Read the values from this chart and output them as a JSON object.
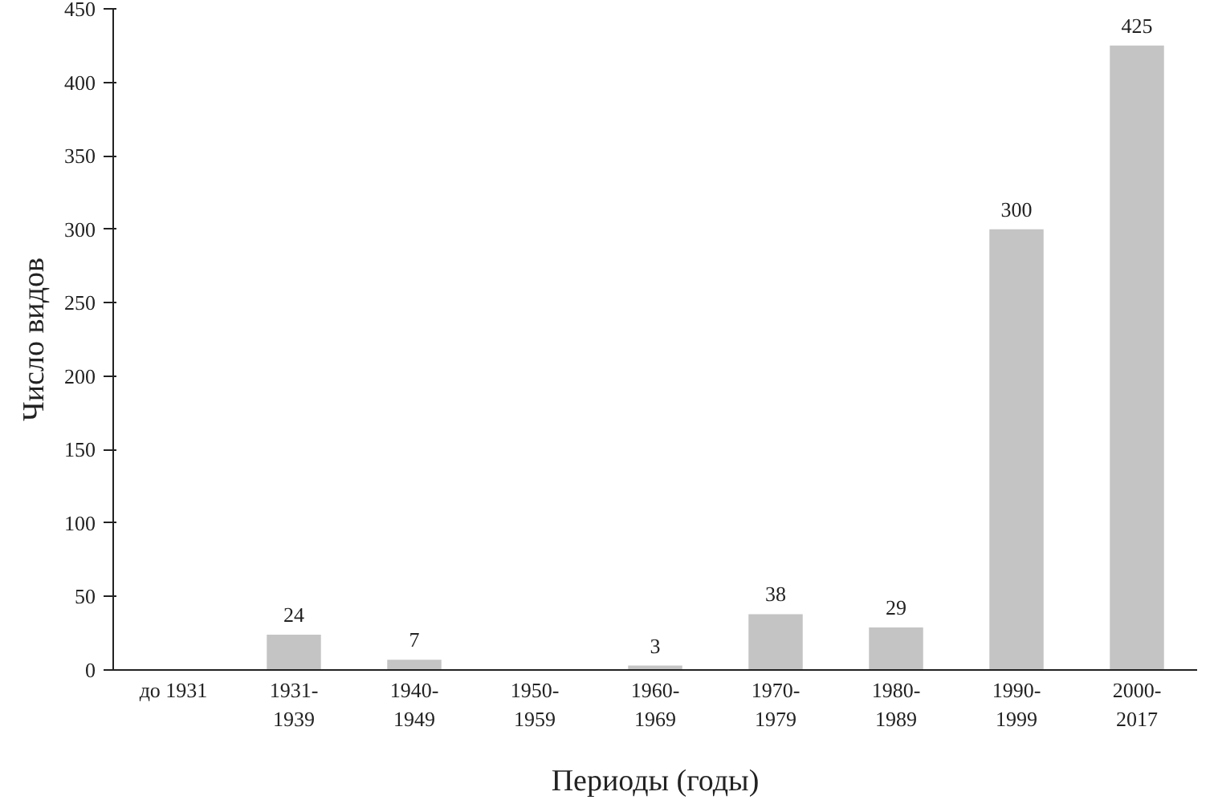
{
  "chart_data": {
    "type": "bar",
    "xlabel": "Периоды (годы)",
    "ylabel": "Число видов",
    "categories": [
      "до 1931",
      "1931-\n1939",
      "1940-\n1949",
      "1950-\n1959",
      "1960-\n1969",
      "1970-\n1979",
      "1980-\n1989",
      "1990-\n1999",
      "2000-\n2017"
    ],
    "values": [
      0,
      24,
      7,
      0,
      3,
      38,
      29,
      300,
      425
    ],
    "value_labels": [
      null,
      "24",
      "7",
      null,
      "3",
      "38",
      "29",
      "300",
      "425"
    ],
    "color": "#c4c4c4",
    "ylim": [
      0,
      450
    ],
    "yticks": [
      0,
      50,
      100,
      150,
      200,
      250,
      300,
      350,
      400,
      450
    ],
    "grid": false
  }
}
